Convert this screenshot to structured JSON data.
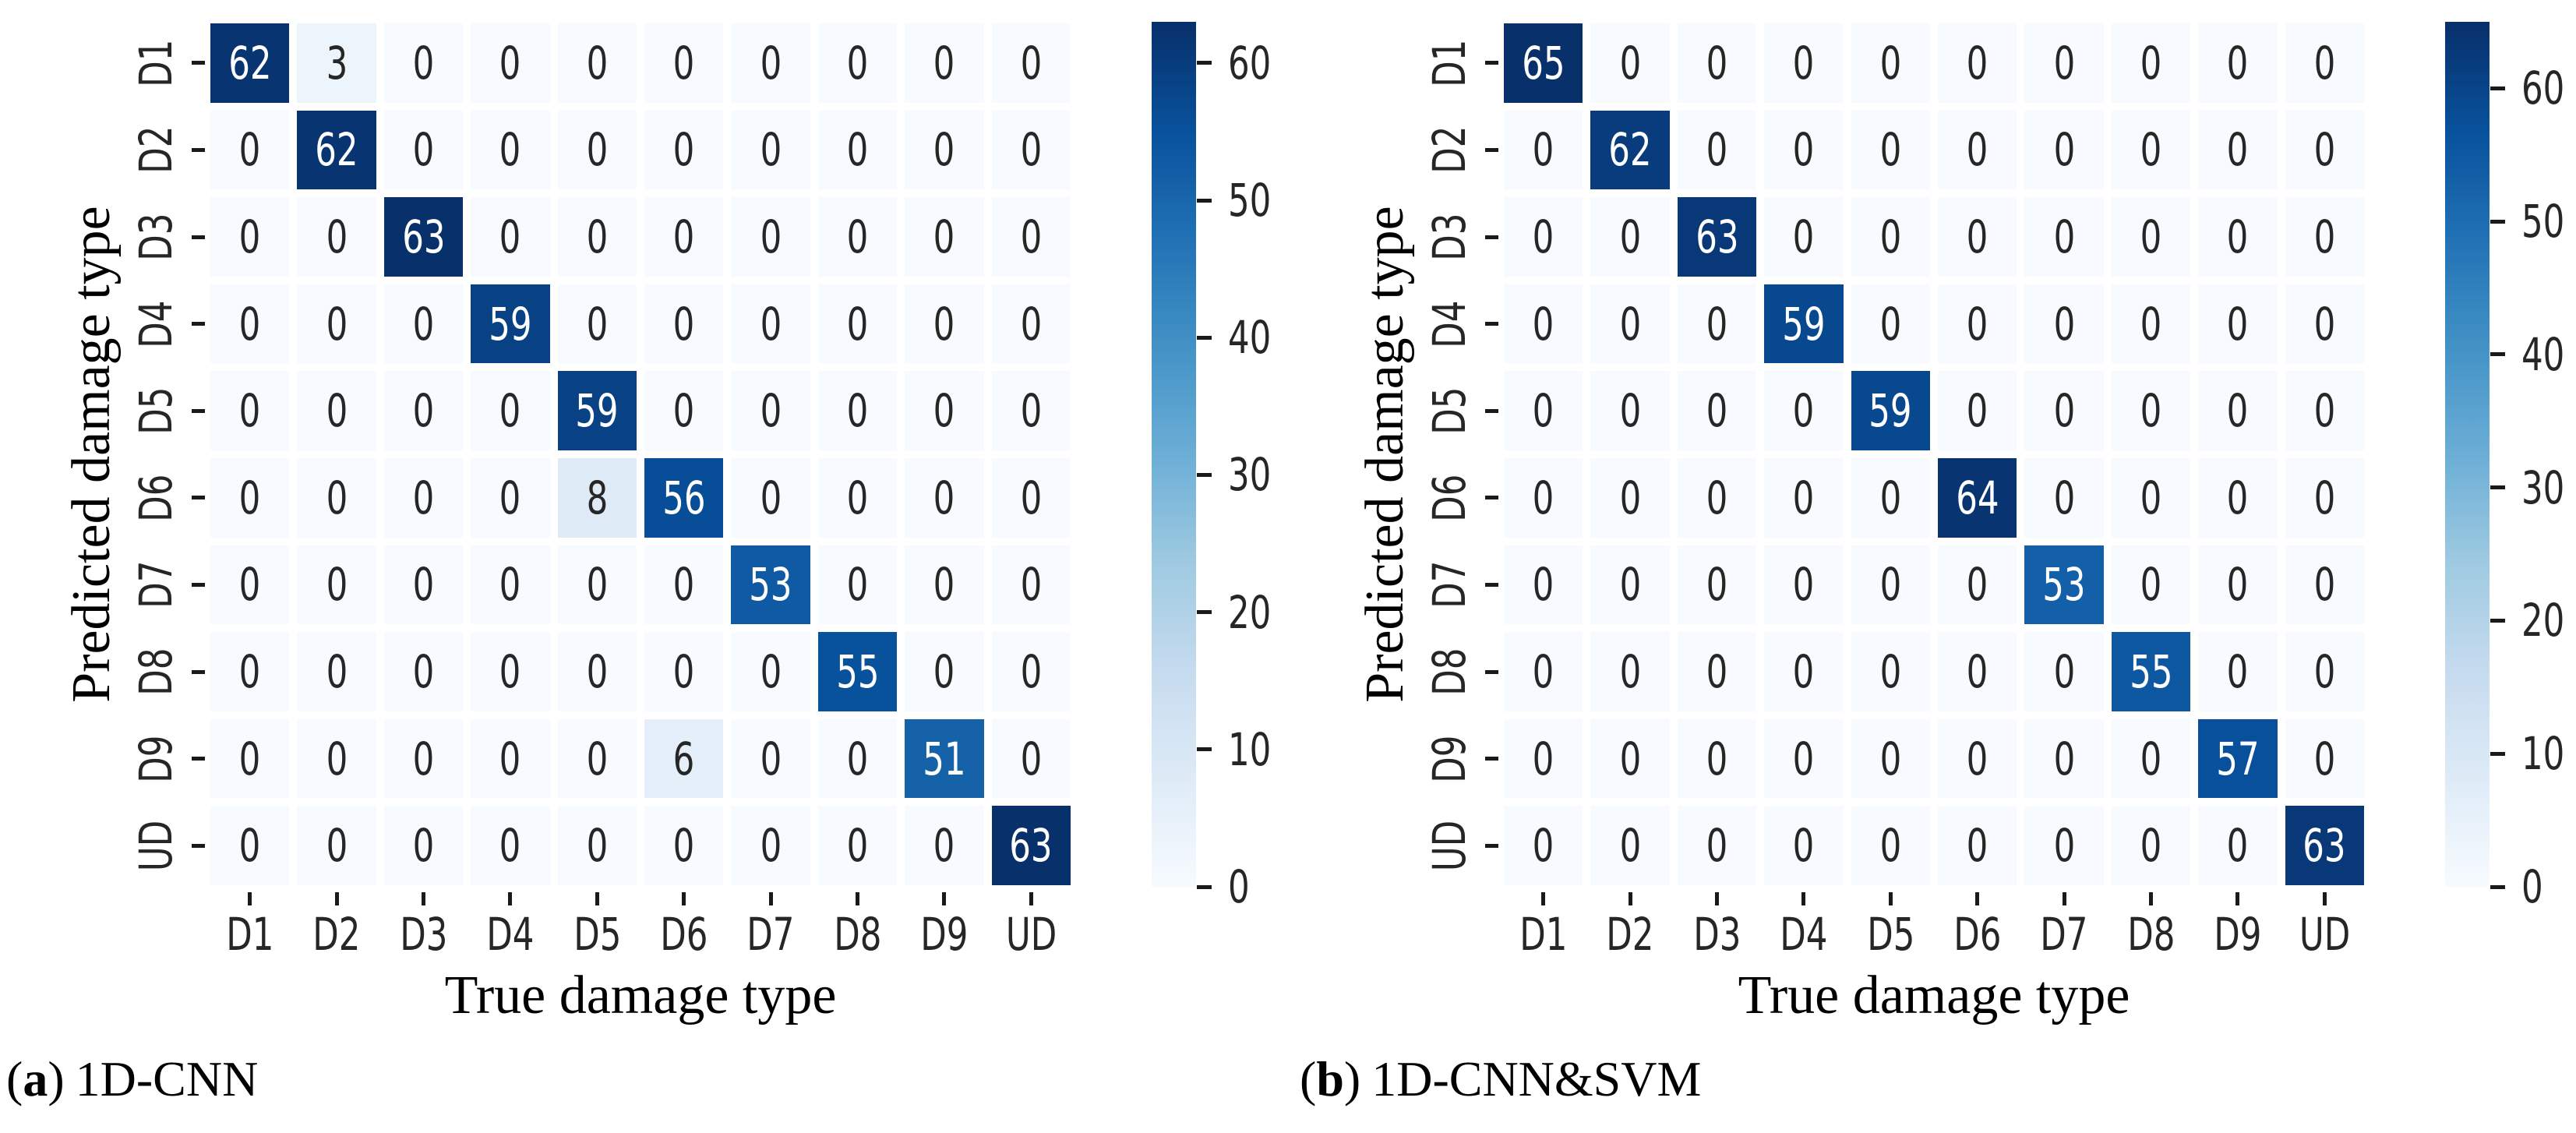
{
  "text_colors": {
    "dark": "#262626",
    "light": "#ffffff"
  },
  "colormap_stops": [
    [
      "0.0",
      "#f7fbff"
    ],
    [
      "0.125",
      "#deebf7"
    ],
    [
      "0.25",
      "#c6dbef"
    ],
    [
      "0.375",
      "#9ecae1"
    ],
    [
      "0.5",
      "#6baed6"
    ],
    [
      "0.625",
      "#4292c6"
    ],
    [
      "0.75",
      "#2171b5"
    ],
    [
      "0.875",
      "#08519c"
    ],
    [
      "1.0",
      "#08306b"
    ]
  ],
  "chart_data": [
    {
      "type": "heatmap",
      "caption": {
        "open": "(",
        "letter": "a",
        "close": ")",
        "title": "1D-CNN"
      },
      "xlabel": "True damage type",
      "ylabel": "Predicted damage type",
      "categories": [
        "D1",
        "D2",
        "D3",
        "D4",
        "D5",
        "D6",
        "D7",
        "D8",
        "D9",
        "UD"
      ],
      "values": [
        [
          62,
          3,
          0,
          0,
          0,
          0,
          0,
          0,
          0,
          0
        ],
        [
          0,
          62,
          0,
          0,
          0,
          0,
          0,
          0,
          0,
          0
        ],
        [
          0,
          0,
          63,
          0,
          0,
          0,
          0,
          0,
          0,
          0
        ],
        [
          0,
          0,
          0,
          59,
          0,
          0,
          0,
          0,
          0,
          0
        ],
        [
          0,
          0,
          0,
          0,
          59,
          0,
          0,
          0,
          0,
          0
        ],
        [
          0,
          0,
          0,
          0,
          8,
          56,
          0,
          0,
          0,
          0
        ],
        [
          0,
          0,
          0,
          0,
          0,
          0,
          53,
          0,
          0,
          0
        ],
        [
          0,
          0,
          0,
          0,
          0,
          0,
          0,
          55,
          0,
          0
        ],
        [
          0,
          0,
          0,
          0,
          0,
          6,
          0,
          0,
          51,
          0
        ],
        [
          0,
          0,
          0,
          0,
          0,
          0,
          0,
          0,
          0,
          63
        ]
      ],
      "vmin": 0,
      "vmax": 63,
      "colormap": "Blues",
      "annotated": true,
      "grid": false,
      "colorbar_position": "right",
      "colorbar_ticks": [
        0,
        10,
        20,
        30,
        40,
        50,
        60
      ]
    },
    {
      "type": "heatmap",
      "caption": {
        "open": "(",
        "letter": "b",
        "close": ")",
        "title": "1D-CNN&SVM"
      },
      "xlabel": "True damage type",
      "ylabel": "Predicted damage type",
      "categories": [
        "D1",
        "D2",
        "D3",
        "D4",
        "D5",
        "D6",
        "D7",
        "D8",
        "D9",
        "UD"
      ],
      "values": [
        [
          65,
          0,
          0,
          0,
          0,
          0,
          0,
          0,
          0,
          0
        ],
        [
          0,
          62,
          0,
          0,
          0,
          0,
          0,
          0,
          0,
          0
        ],
        [
          0,
          0,
          63,
          0,
          0,
          0,
          0,
          0,
          0,
          0
        ],
        [
          0,
          0,
          0,
          59,
          0,
          0,
          0,
          0,
          0,
          0
        ],
        [
          0,
          0,
          0,
          0,
          59,
          0,
          0,
          0,
          0,
          0
        ],
        [
          0,
          0,
          0,
          0,
          0,
          64,
          0,
          0,
          0,
          0
        ],
        [
          0,
          0,
          0,
          0,
          0,
          0,
          53,
          0,
          0,
          0
        ],
        [
          0,
          0,
          0,
          0,
          0,
          0,
          0,
          55,
          0,
          0
        ],
        [
          0,
          0,
          0,
          0,
          0,
          0,
          0,
          0,
          57,
          0
        ],
        [
          0,
          0,
          0,
          0,
          0,
          0,
          0,
          0,
          0,
          63
        ]
      ],
      "vmin": 0,
      "vmax": 65,
      "colormap": "Blues",
      "annotated": true,
      "grid": false,
      "colorbar_position": "right",
      "colorbar_ticks": [
        0,
        10,
        20,
        30,
        40,
        50,
        60
      ]
    }
  ]
}
